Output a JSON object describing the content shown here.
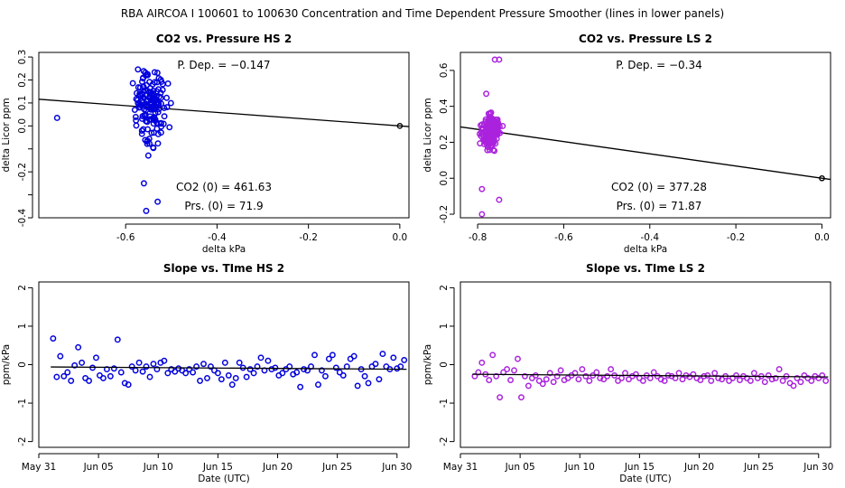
{
  "figure_title": "RBA   AIRCOA I   100601 to 100630   Concentration and Time Dependent Pressure Smoother (lines in lower panels)",
  "colors": {
    "hs": "#0000dd",
    "ls": "#aa22dd",
    "line": "#000000"
  },
  "chart_data": [
    {
      "id": "p1",
      "type": "scatter",
      "title": "CO2 vs. Pressure HS 2",
      "xlabel": "delta kPa",
      "ylabel": "delta Licor ppm",
      "xlim": [
        -0.79,
        0.02
      ],
      "ylim": [
        -0.4,
        0.32
      ],
      "xticks": [
        -0.6,
        -0.4,
        -0.2,
        0.0
      ],
      "xtick_labels": [
        "-0.6",
        "-0.4",
        "-0.2",
        "0.0"
      ],
      "yticks": [
        -0.4,
        -0.3,
        -0.2,
        -0.1,
        0.0,
        0.1,
        0.2,
        0.3
      ],
      "ytick_labels": [
        "-0.4",
        "",
        "-0.2",
        "",
        "0.0",
        "0.1",
        "0.2",
        "0.3"
      ],
      "annot_pdep": "P. Dep. =  −0.147",
      "annot_co2": "CO2 (0) =  461.63",
      "annot_prs": "Prs. (0) = 71.9",
      "fit": {
        "slope": -0.147,
        "intercept": 0.0,
        "x0": -0.79,
        "x1": 0.02
      },
      "zero_point": [
        0.0,
        0.0
      ],
      "cluster": {
        "x_center": -0.545,
        "x_spread": 0.03,
        "y_center": 0.08,
        "y_spread": 0.14,
        "n": 150
      },
      "outliers": [
        [
          -0.75,
          0.035
        ],
        [
          -0.56,
          -0.25
        ],
        [
          -0.555,
          -0.37
        ],
        [
          -0.53,
          -0.33
        ],
        [
          -0.58,
          0.07
        ]
      ]
    },
    {
      "id": "p2",
      "type": "scatter",
      "title": "CO2 vs. Pressure LS 2",
      "xlabel": "delta kPa",
      "ylabel": "delta Licor ppm",
      "xlim": [
        -0.84,
        0.02
      ],
      "ylim": [
        -0.22,
        0.7
      ],
      "xticks": [
        -0.8,
        -0.6,
        -0.4,
        -0.2,
        0.0
      ],
      "xtick_labels": [
        "-0.8",
        "-0.6",
        "-0.4",
        "-0.2",
        "0.0"
      ],
      "yticks": [
        -0.2,
        0.0,
        0.2,
        0.4,
        0.6
      ],
      "ytick_labels": [
        "-0.2",
        "0.0",
        "0.2",
        "0.4",
        "0.6"
      ],
      "annot_pdep": "P. Dep. =  −0.34",
      "annot_co2": "CO2 (0) =  377.28",
      "annot_prs": "Prs. (0) = 71.87",
      "fit": {
        "slope": -0.34,
        "intercept": 0.0,
        "x0": -0.84,
        "x1": 0.02
      },
      "zero_point": [
        0.0,
        0.0
      ],
      "cluster": {
        "x_center": -0.77,
        "x_spread": 0.02,
        "y_center": 0.26,
        "y_spread": 0.09,
        "n": 170
      },
      "outliers": [
        [
          -0.76,
          0.66
        ],
        [
          -0.75,
          0.66
        ],
        [
          -0.79,
          -0.2
        ],
        [
          -0.75,
          -0.12
        ],
        [
          -0.79,
          -0.06
        ],
        [
          -0.78,
          0.47
        ]
      ]
    },
    {
      "id": "p3",
      "type": "scatter",
      "title": "Slope vs. TIme HS 2",
      "xlabel": "Date (UTC)",
      "ylabel": "ppm/kPa",
      "xlim": [
        0,
        31
      ],
      "ylim": [
        -2.15,
        2.15
      ],
      "xticks": [
        0,
        5,
        10,
        15,
        20,
        25,
        30
      ],
      "xtick_labels": [
        "May 31",
        "Jun 05",
        "Jun 10",
        "Jun 15",
        "Jun 20",
        "Jun 25",
        "Jun 30"
      ],
      "yticks": [
        -2,
        -1,
        0,
        1,
        2
      ],
      "ytick_labels": [
        "-2",
        "-1",
        "0",
        "1",
        "2"
      ],
      "x": [
        1.2,
        1.5,
        1.8,
        2.1,
        2.4,
        2.7,
        3.0,
        3.3,
        3.6,
        3.9,
        4.2,
        4.5,
        4.8,
        5.1,
        5.4,
        5.7,
        6.0,
        6.3,
        6.6,
        6.9,
        7.2,
        7.5,
        7.8,
        8.1,
        8.4,
        8.7,
        9.0,
        9.3,
        9.6,
        9.9,
        10.2,
        10.5,
        10.8,
        11.1,
        11.4,
        11.7,
        12.0,
        12.3,
        12.6,
        12.9,
        13.2,
        13.5,
        13.8,
        14.1,
        14.4,
        14.7,
        15.0,
        15.3,
        15.6,
        15.9,
        16.2,
        16.5,
        16.8,
        17.1,
        17.4,
        17.7,
        18.0,
        18.3,
        18.6,
        18.9,
        19.2,
        19.5,
        19.8,
        20.1,
        20.4,
        20.7,
        21.0,
        21.3,
        21.6,
        21.9,
        22.2,
        22.5,
        22.8,
        23.1,
        23.4,
        23.7,
        24.0,
        24.3,
        24.6,
        24.9,
        25.2,
        25.5,
        25.8,
        26.1,
        26.4,
        26.7,
        27.0,
        27.3,
        27.6,
        27.9,
        28.2,
        28.5,
        28.8,
        29.1,
        29.4,
        29.7,
        30.0,
        30.3,
        30.6
      ],
      "y": [
        0.68,
        -0.32,
        0.22,
        -0.3,
        -0.2,
        -0.42,
        -0.02,
        0.45,
        0.05,
        -0.35,
        -0.42,
        -0.08,
        0.18,
        -0.28,
        -0.35,
        -0.12,
        -0.3,
        -0.1,
        0.65,
        -0.2,
        -0.48,
        -0.52,
        -0.05,
        -0.15,
        0.05,
        -0.18,
        -0.05,
        -0.32,
        0.02,
        -0.12,
        0.05,
        0.1,
        -0.22,
        -0.12,
        -0.18,
        -0.1,
        -0.15,
        -0.22,
        -0.12,
        -0.2,
        -0.05,
        -0.42,
        0.02,
        -0.35,
        -0.05,
        -0.15,
        -0.22,
        -0.38,
        0.05,
        -0.28,
        -0.52,
        -0.35,
        0.05,
        -0.08,
        -0.32,
        -0.12,
        -0.22,
        -0.05,
        0.18,
        -0.15,
        0.1,
        -0.12,
        -0.08,
        -0.28,
        -0.22,
        -0.12,
        -0.05,
        -0.25,
        -0.2,
        -0.58,
        -0.12,
        -0.15,
        -0.05,
        0.25,
        -0.52,
        -0.15,
        -0.3,
        0.15,
        0.25,
        -0.08,
        -0.2,
        -0.28,
        -0.05,
        0.15,
        0.22,
        -0.55,
        -0.12,
        -0.3,
        -0.48,
        -0.05,
        0.02,
        -0.38,
        0.28,
        -0.05,
        -0.12,
        0.18,
        -0.1,
        -0.05,
        0.12
      ],
      "fit": {
        "x0": 1.0,
        "y0": -0.06,
        "x1": 30.8,
        "y1": -0.12
      }
    },
    {
      "id": "p4",
      "type": "scatter",
      "title": "Slope vs. TIme LS 2",
      "xlabel": "Date (UTC)",
      "ylabel": "ppm/kPa",
      "xlim": [
        0,
        31
      ],
      "ylim": [
        -2.15,
        2.15
      ],
      "xticks": [
        0,
        5,
        10,
        15,
        20,
        25,
        30
      ],
      "xtick_labels": [
        "May 31",
        "Jun 05",
        "Jun 10",
        "Jun 15",
        "Jun 20",
        "Jun 25",
        "Jun 30"
      ],
      "yticks": [
        -2,
        -1,
        0,
        1,
        2
      ],
      "ytick_labels": [
        "-2",
        "-1",
        "0",
        "1",
        "2"
      ],
      "x": [
        1.2,
        1.5,
        1.8,
        2.1,
        2.4,
        2.7,
        3.0,
        3.3,
        3.6,
        3.9,
        4.2,
        4.5,
        4.8,
        5.1,
        5.4,
        5.7,
        6.0,
        6.3,
        6.6,
        6.9,
        7.2,
        7.5,
        7.8,
        8.1,
        8.4,
        8.7,
        9.0,
        9.3,
        9.6,
        9.9,
        10.2,
        10.5,
        10.8,
        11.1,
        11.4,
        11.7,
        12.0,
        12.3,
        12.6,
        12.9,
        13.2,
        13.5,
        13.8,
        14.1,
        14.4,
        14.7,
        15.0,
        15.3,
        15.6,
        15.9,
        16.2,
        16.5,
        16.8,
        17.1,
        17.4,
        17.7,
        18.0,
        18.3,
        18.6,
        18.9,
        19.2,
        19.5,
        19.8,
        20.1,
        20.4,
        20.7,
        21.0,
        21.3,
        21.6,
        21.9,
        22.2,
        22.5,
        22.8,
        23.1,
        23.4,
        23.7,
        24.0,
        24.3,
        24.6,
        24.9,
        25.2,
        25.5,
        25.8,
        26.1,
        26.4,
        26.7,
        27.0,
        27.3,
        27.6,
        27.9,
        28.2,
        28.5,
        28.8,
        29.1,
        29.4,
        29.7,
        30.0,
        30.3,
        30.6
      ],
      "y": [
        -0.3,
        -0.2,
        0.05,
        -0.25,
        -0.4,
        0.25,
        -0.3,
        -0.85,
        -0.2,
        -0.12,
        -0.4,
        -0.15,
        0.15,
        -0.85,
        -0.3,
        -0.55,
        -0.35,
        -0.28,
        -0.42,
        -0.5,
        -0.38,
        -0.22,
        -0.45,
        -0.3,
        -0.15,
        -0.4,
        -0.35,
        -0.28,
        -0.22,
        -0.38,
        -0.12,
        -0.3,
        -0.42,
        -0.28,
        -0.2,
        -0.35,
        -0.38,
        -0.3,
        -0.12,
        -0.28,
        -0.42,
        -0.35,
        -0.22,
        -0.38,
        -0.3,
        -0.25,
        -0.35,
        -0.42,
        -0.28,
        -0.35,
        -0.2,
        -0.3,
        -0.38,
        -0.42,
        -0.28,
        -0.3,
        -0.35,
        -0.22,
        -0.38,
        -0.28,
        -0.32,
        -0.25,
        -0.35,
        -0.4,
        -0.3,
        -0.28,
        -0.42,
        -0.22,
        -0.35,
        -0.38,
        -0.3,
        -0.42,
        -0.35,
        -0.28,
        -0.4,
        -0.3,
        -0.35,
        -0.42,
        -0.22,
        -0.35,
        -0.3,
        -0.45,
        -0.28,
        -0.38,
        -0.35,
        -0.12,
        -0.42,
        -0.3,
        -0.48,
        -0.55,
        -0.35,
        -0.45,
        -0.28,
        -0.35,
        -0.42,
        -0.3,
        -0.35,
        -0.28,
        -0.42
      ],
      "fit": {
        "x0": 1.0,
        "y0": -0.25,
        "x1": 30.8,
        "y1": -0.32
      }
    }
  ]
}
